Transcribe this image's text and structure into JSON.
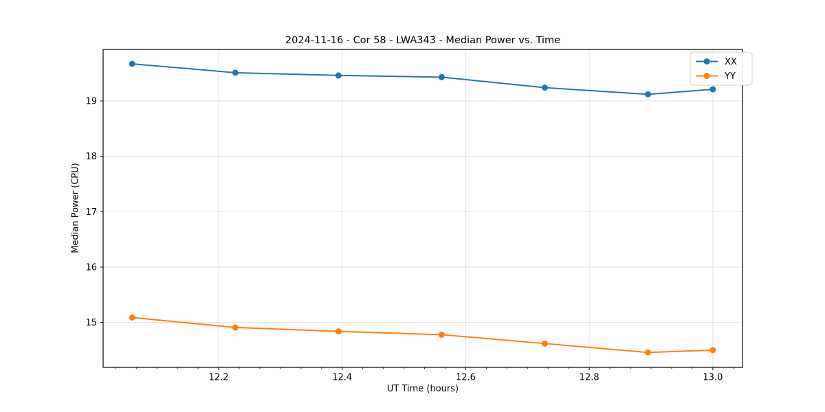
{
  "chart_data": {
    "type": "line",
    "title": "2024-11-16 - Cor 58 - LWA343 - Median Power vs. Time",
    "xlabel": "UT Time (hours)",
    "ylabel": "Median Power (CPU)",
    "x": [
      12.06,
      12.227,
      12.394,
      12.561,
      12.728,
      12.895,
      13.0
    ],
    "series": [
      {
        "name": "XX",
        "color": "#1f77b4",
        "values": [
          19.67,
          19.51,
          19.46,
          19.43,
          19.24,
          19.12,
          19.21
        ]
      },
      {
        "name": "YY",
        "color": "#ff7f0e",
        "values": [
          15.09,
          14.91,
          14.84,
          14.78,
          14.62,
          14.46,
          14.5
        ]
      }
    ],
    "xlim": [
      12.013,
      13.048
    ],
    "ylim": [
      14.19,
      19.93
    ],
    "x_ticks": [
      12.2,
      12.4,
      12.6,
      12.8,
      13.0
    ],
    "x_tick_labels": [
      "12.2",
      "12.4",
      "12.6",
      "12.8",
      "13.0"
    ],
    "x_minor_tick_step": 0.0333333,
    "y_ticks": [
      15,
      16,
      17,
      18,
      19
    ],
    "y_tick_labels": [
      "15",
      "16",
      "17",
      "18",
      "19"
    ],
    "grid": true,
    "legend": {
      "position": "upper right",
      "entries": [
        "XX",
        "YY"
      ]
    },
    "marker": "circle",
    "line_width": 2,
    "marker_radius": 4.5
  },
  "colors": {
    "background": "#ffffff",
    "axis": "#000000",
    "tick_text": "#000000",
    "grid": "#e2e2e2",
    "legend_border": "#cccccc",
    "legend_background": "#ffffff"
  }
}
